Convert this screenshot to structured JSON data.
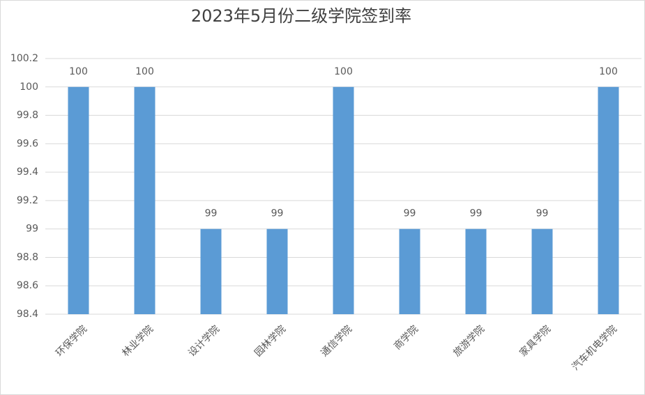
{
  "chart_data": {
    "type": "bar",
    "title": "2023年5月份二级学院签到率",
    "categories": [
      "环保学院",
      "林业学院",
      "设计学院",
      "园林学院",
      "通信学院",
      "商学院",
      "旅游学院",
      "家具学院",
      "汽车机电学院"
    ],
    "values": [
      100,
      100,
      99,
      99,
      100,
      99,
      99,
      99,
      100
    ],
    "color": "#5b9bd5",
    "ylim": [
      98.4,
      100.2
    ],
    "yticks": [
      98.4,
      98.6,
      98.8,
      99,
      99.2,
      99.4,
      99.6,
      99.8,
      100,
      100.2
    ],
    "grid": true
  }
}
